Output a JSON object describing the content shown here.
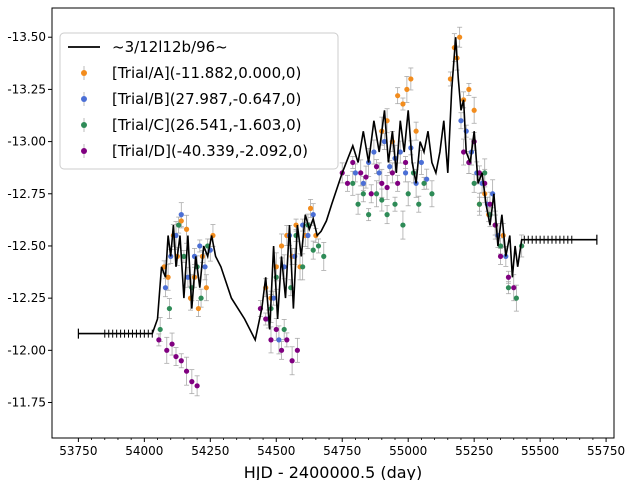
{
  "chart_data": {
    "type": "scatter",
    "title": "",
    "xlabel": "HJD - 2400000.5 (day)",
    "ylabel": "",
    "xlim": [
      53650,
      55780
    ],
    "ylim": [
      11.58,
      13.64
    ],
    "y_inverted": true,
    "x_ticks": [
      53750,
      54000,
      54250,
      54500,
      54750,
      55000,
      55250,
      55500,
      55750
    ],
    "y_ticks": [
      11.75,
      12.0,
      12.25,
      12.5,
      12.75,
      13.0,
      13.25,
      13.5
    ],
    "x_tick_labels": [
      "53750",
      "54000",
      "54250",
      "54500",
      "54750",
      "55000",
      "55250",
      "55500",
      "55750"
    ],
    "y_tick_labels": [
      "-11.75",
      "-12.00",
      "-12.25",
      "-12.50",
      "-12.75",
      "-13.00",
      "-13.25",
      "-13.50"
    ],
    "legend_position": "top-left",
    "model_line": {
      "name": "~3/12l12b/96~",
      "color": "#000000",
      "x": [
        53750,
        54030,
        54050,
        54065,
        54080,
        54090,
        54100,
        54110,
        54120,
        54135,
        54150,
        54165,
        54180,
        54195,
        54210,
        54225,
        54240,
        54255,
        54270,
        54290,
        54330,
        54380,
        54420,
        54445,
        54460,
        54475,
        54490,
        54505,
        54520,
        54535,
        54550,
        54565,
        54580,
        54595,
        54610,
        54625,
        54640,
        54655,
        54670,
        54690,
        54710,
        54750,
        54790,
        54810,
        54830,
        54850,
        54870,
        54890,
        54910,
        54925,
        54940,
        54955,
        54970,
        54985,
        55000,
        55015,
        55030,
        55045,
        55060,
        55075,
        55090,
        55105,
        55120,
        55135,
        55150,
        55165,
        55180,
        55190,
        55200,
        55210,
        55220,
        55235,
        55250,
        55265,
        55280,
        55295,
        55310,
        55325,
        55340,
        55355,
        55370,
        55385,
        55395,
        55405,
        55415,
        55430,
        55715
      ],
      "y": [
        12.08,
        12.08,
        12.15,
        12.4,
        12.35,
        12.55,
        12.45,
        12.6,
        12.4,
        12.55,
        12.25,
        12.55,
        12.2,
        12.45,
        12.3,
        12.5,
        12.45,
        12.55,
        12.45,
        12.4,
        12.25,
        12.15,
        12.05,
        12.2,
        12.35,
        12.1,
        12.5,
        12.15,
        12.45,
        12.25,
        12.6,
        12.2,
        12.6,
        12.45,
        12.65,
        12.58,
        12.63,
        12.55,
        12.57,
        12.62,
        12.7,
        12.85,
        12.98,
        12.9,
        13.05,
        12.9,
        13.1,
        12.95,
        13.15,
        12.9,
        13.05,
        12.85,
        13.1,
        12.95,
        13.15,
        12.9,
        12.8,
        13.0,
        12.95,
        13.05,
        12.9,
        12.85,
        12.95,
        13.1,
        12.85,
        13.25,
        13.5,
        13.3,
        13.15,
        13.2,
        12.95,
        12.9,
        13.05,
        12.8,
        12.85,
        12.7,
        12.6,
        12.75,
        12.5,
        12.65,
        12.45,
        12.55,
        12.35,
        12.5,
        12.4,
        12.53,
        12.53
      ]
    },
    "series": [
      {
        "name": "[Trial/A](-11.882,0.000,0)",
        "color": "#f28c1d",
        "x": [
          54075,
          54090,
          54110,
          54125,
          54140,
          54160,
          54175,
          54190,
          54205,
          54220,
          54235,
          54260,
          54460,
          54480,
          54500,
          54520,
          54540,
          54560,
          54575,
          54590,
          54610,
          54630,
          54650,
          54900,
          54920,
          54940,
          54960,
          54980,
          54995,
          55010,
          55030,
          55160,
          55175,
          55185,
          55195,
          55210,
          55230,
          55250,
          55270,
          55290,
          55305,
          55330,
          55360
        ],
        "y": [
          12.4,
          12.35,
          12.55,
          12.45,
          12.62,
          12.58,
          12.25,
          12.35,
          12.2,
          12.45,
          12.3,
          12.55,
          12.3,
          12.25,
          12.4,
          12.5,
          12.55,
          12.45,
          12.6,
          12.4,
          12.55,
          12.68,
          12.55,
          13.05,
          13.1,
          13.0,
          13.22,
          13.18,
          13.25,
          13.3,
          13.05,
          13.3,
          13.45,
          13.4,
          13.5,
          13.2,
          13.25,
          13.15,
          12.7,
          12.75,
          12.65,
          12.6,
          12.55
        ]
      },
      {
        "name": "[Trial/B](27.987,-0.647,0)",
        "color": "#4b6fd6",
        "x": [
          54080,
          54100,
          54120,
          54140,
          54165,
          54190,
          54210,
          54230,
          54250,
          54470,
          54490,
          54510,
          54530,
          54550,
          54570,
          54600,
          54620,
          54640,
          54800,
          54830,
          54850,
          54870,
          54890,
          54910,
          54930,
          54950,
          54970,
          54990,
          55010,
          55030,
          55050,
          55070,
          55200,
          55220,
          55240,
          55260,
          55280,
          55300,
          55320,
          55340,
          55370
        ],
        "y": [
          12.3,
          12.45,
          12.55,
          12.65,
          12.35,
          12.45,
          12.5,
          12.4,
          12.48,
          12.15,
          12.25,
          12.05,
          12.4,
          12.55,
          12.45,
          12.6,
          12.55,
          12.65,
          12.85,
          12.8,
          12.9,
          12.95,
          12.85,
          13.0,
          12.88,
          12.92,
          12.95,
          12.85,
          12.97,
          12.8,
          12.9,
          12.82,
          13.1,
          13.05,
          12.95,
          12.85,
          12.8,
          12.7,
          12.75,
          12.55,
          12.45
        ]
      },
      {
        "name": "[Trial/C](26.541,-1.603,0)",
        "color": "#2e8b57",
        "x": [
          54060,
          54095,
          54130,
          54150,
          54180,
          54200,
          54215,
          54240,
          54480,
          54500,
          54530,
          54555,
          54575,
          54600,
          54620,
          54640,
          54660,
          54680,
          54790,
          54810,
          54830,
          54850,
          54880,
          54900,
          54920,
          54950,
          54980,
          55000,
          55020,
          55040,
          55060,
          55090,
          55230,
          55250,
          55270,
          55290,
          55310,
          55330,
          55350,
          55380,
          55410,
          55430
        ],
        "y": [
          12.1,
          12.2,
          12.6,
          12.45,
          12.3,
          12.4,
          12.25,
          12.5,
          12.2,
          12.35,
          12.1,
          12.3,
          12.55,
          12.4,
          12.6,
          12.48,
          12.5,
          12.45,
          12.8,
          12.7,
          12.75,
          12.65,
          12.75,
          12.72,
          12.65,
          12.7,
          12.6,
          12.75,
          12.85,
          12.7,
          12.8,
          12.75,
          12.9,
          12.8,
          12.7,
          12.85,
          12.65,
          12.6,
          12.5,
          12.3,
          12.25,
          12.5
        ]
      },
      {
        "name": "[Trial/D](-40.339,-2.092,0)",
        "color": "#800080",
        "x": [
          54055,
          54085,
          54105,
          54120,
          54140,
          54160,
          54180,
          54200,
          54440,
          54460,
          54480,
          54500,
          54520,
          54540,
          54560,
          54580,
          54750,
          54770,
          54790,
          54820,
          54840,
          54860,
          54880,
          54900,
          54920,
          54940,
          54960,
          54990,
          55210,
          55230,
          55250,
          55270,
          55290,
          55310,
          55330,
          55350,
          55380,
          55400
        ],
        "y": [
          12.05,
          12.0,
          12.03,
          11.97,
          11.95,
          11.9,
          11.85,
          11.83,
          12.2,
          12.15,
          12.05,
          12.1,
          12.0,
          12.05,
          11.95,
          12.0,
          12.85,
          12.8,
          12.9,
          12.85,
          12.83,
          12.75,
          12.88,
          12.8,
          12.78,
          12.85,
          12.8,
          12.9,
          12.95,
          12.9,
          13.0,
          12.85,
          12.8,
          12.7,
          12.6,
          12.45,
          12.35,
          12.3
        ]
      }
    ]
  }
}
